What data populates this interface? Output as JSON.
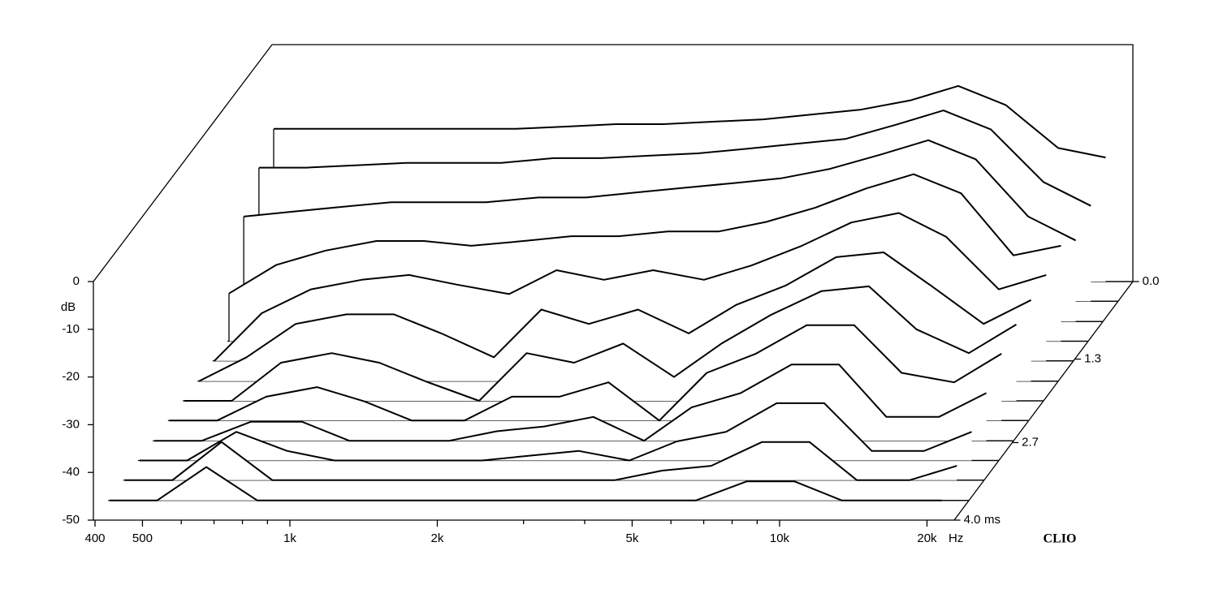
{
  "chart_data": {
    "type": "waterfall",
    "ylabel": "dB",
    "xunit": "Hz",
    "zunit": "ms",
    "brand": "CLIO",
    "x": [
      400,
      500,
      630,
      800,
      1000,
      1250,
      1600,
      2000,
      2500,
      3150,
      4000,
      5000,
      6300,
      8000,
      10000,
      12500,
      16000,
      20000
    ],
    "xlim": [
      400,
      22700
    ],
    "xlog": true,
    "xticks": [
      400,
      500,
      {
        "value": 1000,
        "label": "1k"
      },
      {
        "value": 2000,
        "label": "2k"
      },
      {
        "value": 5000,
        "label": "5k"
      },
      {
        "value": 10000,
        "label": "10k"
      },
      {
        "value": 20000,
        "label": "20k"
      }
    ],
    "xminorticks": [
      600,
      700,
      800,
      900,
      3000,
      4000,
      6000,
      7000,
      8000,
      9000
    ],
    "ylim": [
      -50,
      0
    ],
    "yticks": [
      0,
      -10,
      -20,
      -30,
      -40,
      -50
    ],
    "zlim": [
      0,
      4
    ],
    "zticks": [
      {
        "value": 0,
        "label": "0.0"
      },
      {
        "value": 1.3,
        "label": "1.3"
      },
      {
        "value": 2.7,
        "label": "2.7"
      },
      {
        "value": 4,
        "label": "4.0"
      }
    ],
    "color": "#000000",
    "series": [
      {
        "z": 0,
        "values": [
          -18,
          -18,
          -18,
          -18,
          -18,
          -18,
          -17.5,
          -17,
          -17,
          -16.5,
          -16,
          -15,
          -14,
          -12,
          -9,
          -13,
          -22,
          -24
        ]
      },
      {
        "z": 0.33,
        "values": [
          -22,
          -22,
          -21.5,
          -21,
          -21,
          -21,
          -20,
          -20,
          -19.5,
          -19,
          -18,
          -17,
          -16,
          -13,
          -10,
          -14,
          -25,
          -30
        ]
      },
      {
        "z": 0.67,
        "values": [
          -28,
          -27,
          -26,
          -25,
          -25,
          -25,
          -24,
          -24,
          -23,
          -22,
          -21,
          -20,
          -18,
          -15,
          -12,
          -16,
          -28,
          -33
        ]
      },
      {
        "z": 1,
        "values": [
          -40,
          -34,
          -31,
          -29,
          -29,
          -30,
          -29,
          -28,
          -28,
          -27,
          -27,
          -25,
          -22,
          -18,
          -15,
          -19,
          -32,
          -30
        ]
      },
      {
        "z": 1.33,
        "values": [
          -50,
          -40,
          -35,
          -33,
          -32,
          -34,
          -36,
          -31,
          -33,
          -31,
          -33,
          -30,
          -26,
          -21,
          -19,
          -24,
          -35,
          -32
        ]
      },
      {
        "z": 1.67,
        "values": [
          -50,
          -45,
          -38,
          -36,
          -36,
          -40,
          -45,
          -35,
          -38,
          -35,
          -40,
          -34,
          -30,
          -24,
          -23,
          -30,
          -38,
          -33
        ]
      },
      {
        "z": 2,
        "values": [
          -50,
          -50,
          -42,
          -40,
          -42,
          -46,
          -50,
          -40,
          -42,
          -38,
          -45,
          -38,
          -32,
          -27,
          -26,
          -35,
          -40,
          -34
        ]
      },
      {
        "z": 2.33,
        "values": [
          -50,
          -50,
          -45,
          -43,
          -46,
          -50,
          -50,
          -45,
          -45,
          -42,
          -50,
          -40,
          -36,
          -30,
          -30,
          -40,
          -42,
          -36
        ]
      },
      {
        "z": 2.67,
        "values": [
          -50,
          -50,
          -46,
          -46,
          -50,
          -50,
          -50,
          -48,
          -47,
          -45,
          -50,
          -43,
          -40,
          -34,
          -34,
          -45,
          -45,
          -40
        ]
      },
      {
        "z": 3,
        "values": [
          -50,
          -50,
          -44,
          -48,
          -50,
          -50,
          -50,
          -50,
          -49,
          -48,
          -50,
          -46,
          -44,
          -38,
          -38,
          -48,
          -48,
          -44
        ]
      },
      {
        "z": 3.33,
        "values": [
          -50,
          -50,
          -42,
          -50,
          -50,
          -50,
          -50,
          -50,
          -50,
          -50,
          -50,
          -48,
          -47,
          -42,
          -42,
          -50,
          -50,
          -47
        ]
      },
      {
        "z": 3.67,
        "values": [
          -50,
          -50,
          -43,
          -50,
          -50,
          -50,
          -50,
          -50,
          -50,
          -50,
          -50,
          -50,
          -50,
          -46,
          -46,
          -50,
          -50,
          -50
        ]
      }
    ]
  }
}
